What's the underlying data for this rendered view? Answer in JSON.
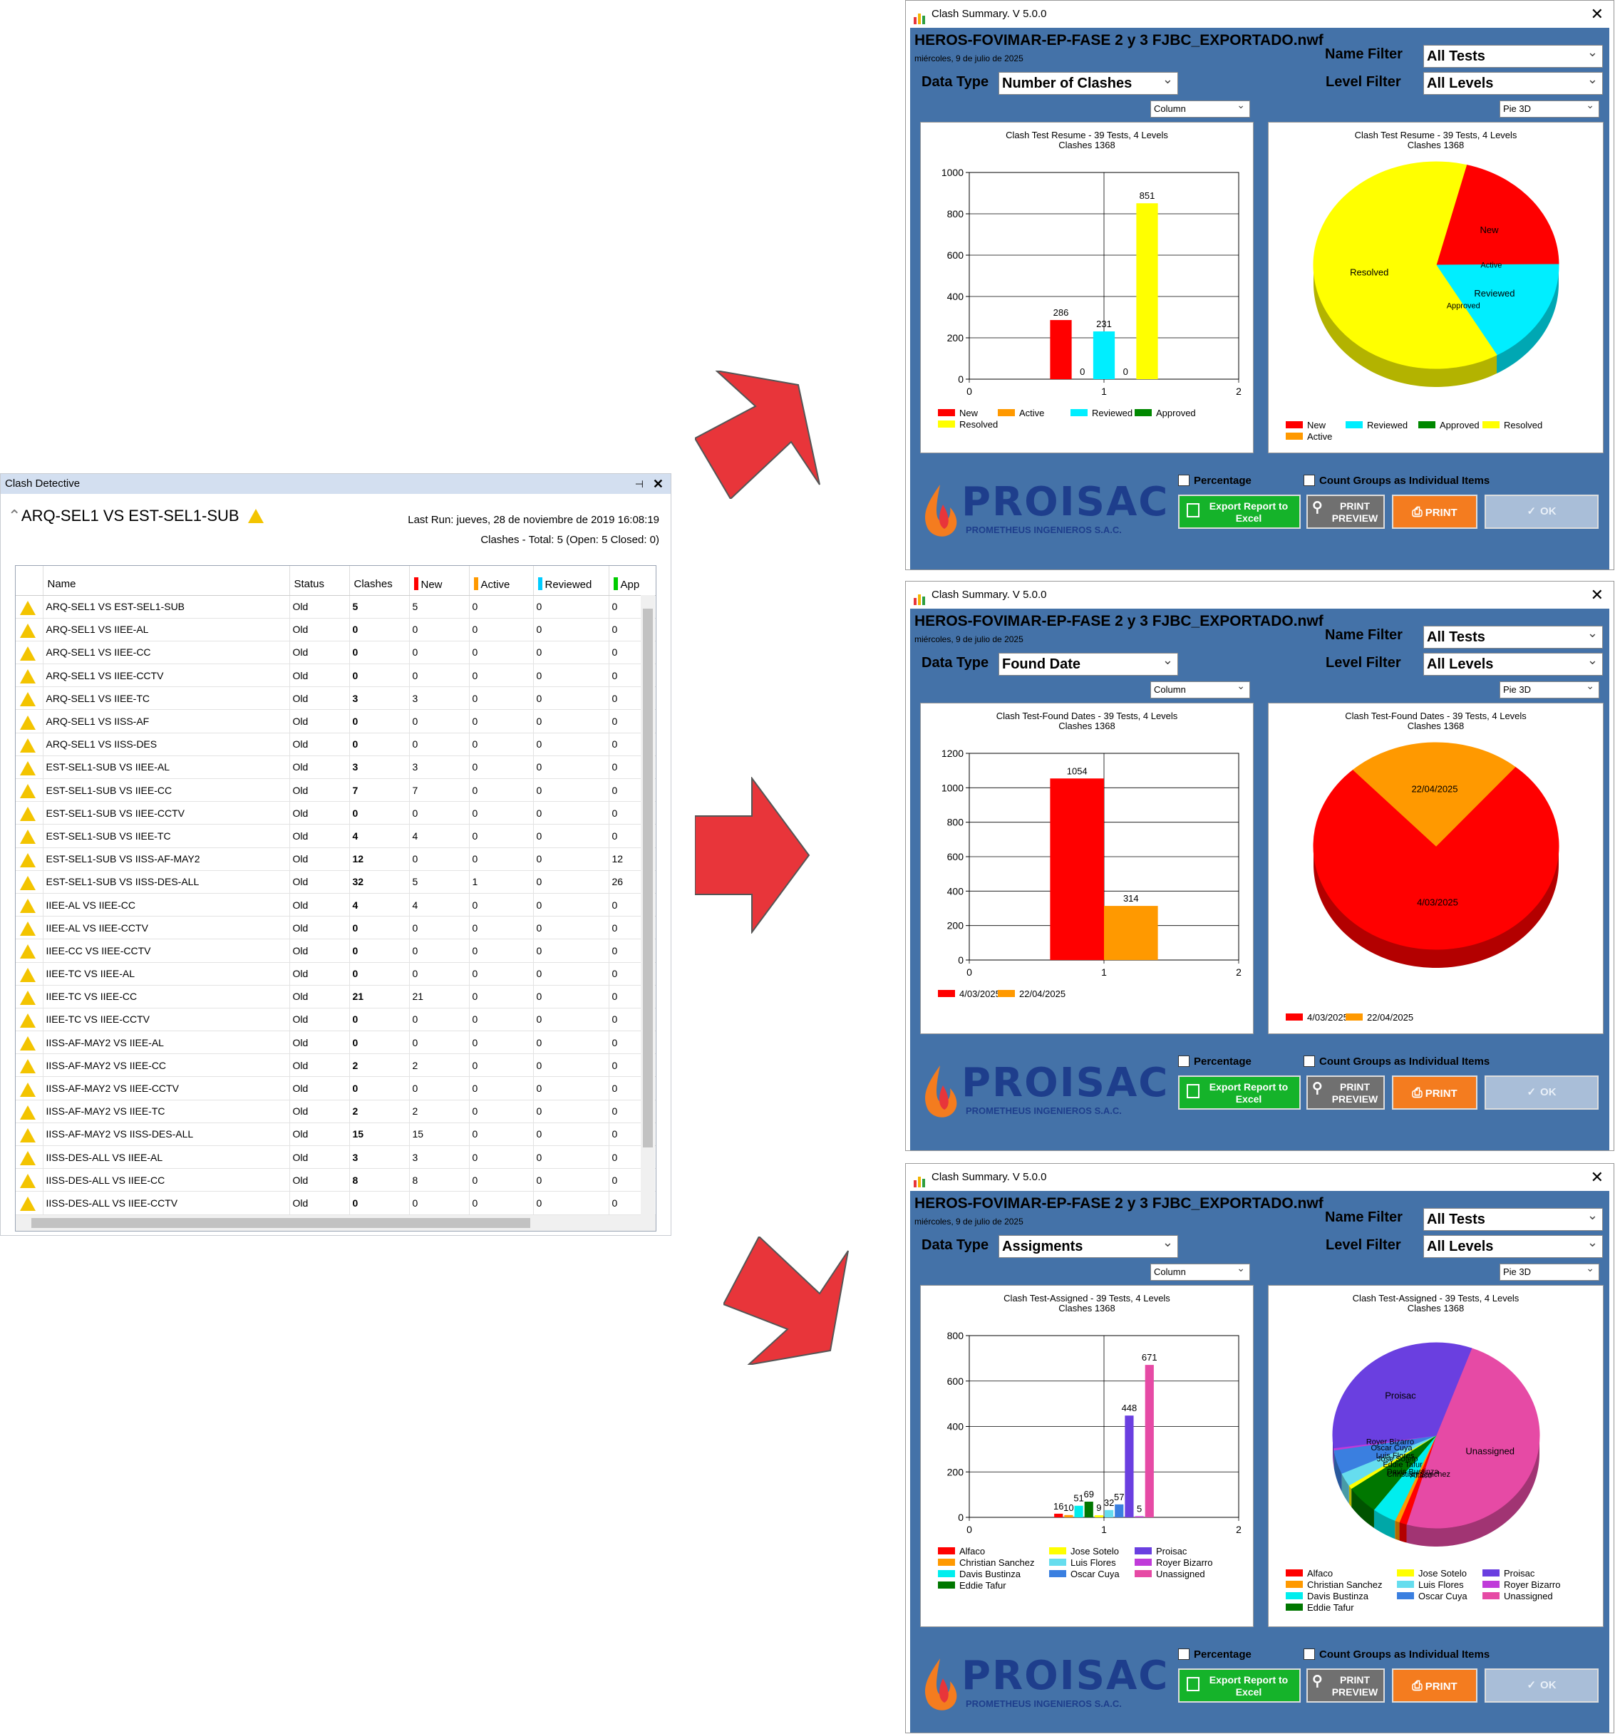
{
  "detective": {
    "window_title": "Clash Detective",
    "pin": "⊣",
    "close": "✕",
    "test_name": "ARQ-SEL1 VS EST-SEL1-SUB",
    "last_run": "Last Run:  jueves, 28 de noviembre de 2019 16:08:19",
    "summary": "Clashes - Total:  5  (Open:  5  Closed:  0)",
    "columns": [
      "Name",
      "Status",
      "Clashes",
      "New",
      "Active",
      "Reviewed",
      "App"
    ],
    "column_colors": {
      "New": "#ff0000",
      "Active": "#ff9900",
      "Reviewed": "#00ccff",
      "App": "#00cc00"
    },
    "rows": [
      [
        "ARQ-SEL1 VS EST-SEL1-SUB",
        "Old",
        "5",
        "5",
        "0",
        "0",
        "0"
      ],
      [
        "ARQ-SEL1 VS IIEE-AL",
        "Old",
        "0",
        "0",
        "0",
        "0",
        "0"
      ],
      [
        "ARQ-SEL1 VS IIEE-CC",
        "Old",
        "0",
        "0",
        "0",
        "0",
        "0"
      ],
      [
        "ARQ-SEL1 VS IIEE-CCTV",
        "Old",
        "0",
        "0",
        "0",
        "0",
        "0"
      ],
      [
        "ARQ-SEL1 VS IIEE-TC",
        "Old",
        "3",
        "3",
        "0",
        "0",
        "0"
      ],
      [
        "ARQ-SEL1 VS IISS-AF",
        "Old",
        "0",
        "0",
        "0",
        "0",
        "0"
      ],
      [
        "ARQ-SEL1 VS IISS-DES",
        "Old",
        "0",
        "0",
        "0",
        "0",
        "0"
      ],
      [
        "EST-SEL1-SUB VS IIEE-AL",
        "Old",
        "3",
        "3",
        "0",
        "0",
        "0"
      ],
      [
        "EST-SEL1-SUB VS IIEE-CC",
        "Old",
        "7",
        "7",
        "0",
        "0",
        "0"
      ],
      [
        "EST-SEL1-SUB VS IIEE-CCTV",
        "Old",
        "0",
        "0",
        "0",
        "0",
        "0"
      ],
      [
        "EST-SEL1-SUB VS IIEE-TC",
        "Old",
        "4",
        "4",
        "0",
        "0",
        "0"
      ],
      [
        "EST-SEL1-SUB VS IISS-AF-MAY2",
        "Old",
        "12",
        "0",
        "0",
        "0",
        "12"
      ],
      [
        "EST-SEL1-SUB VS IISS-DES-ALL",
        "Old",
        "32",
        "5",
        "1",
        "0",
        "26"
      ],
      [
        "IIEE-AL VS IIEE-CC",
        "Old",
        "4",
        "4",
        "0",
        "0",
        "0"
      ],
      [
        "IIEE-AL VS IIEE-CCTV",
        "Old",
        "0",
        "0",
        "0",
        "0",
        "0"
      ],
      [
        "IIEE-CC VS IIEE-CCTV",
        "Old",
        "0",
        "0",
        "0",
        "0",
        "0"
      ],
      [
        "IIEE-TC VS IIEE-AL",
        "Old",
        "0",
        "0",
        "0",
        "0",
        "0"
      ],
      [
        "IIEE-TC VS IIEE-CC",
        "Old",
        "21",
        "21",
        "0",
        "0",
        "0"
      ],
      [
        "IIEE-TC VS IIEE-CCTV",
        "Old",
        "0",
        "0",
        "0",
        "0",
        "0"
      ],
      [
        "IISS-AF-MAY2 VS IIEE-AL",
        "Old",
        "0",
        "0",
        "0",
        "0",
        "0"
      ],
      [
        "IISS-AF-MAY2 VS IIEE-CC",
        "Old",
        "2",
        "2",
        "0",
        "0",
        "0"
      ],
      [
        "IISS-AF-MAY2 VS IIEE-CCTV",
        "Old",
        "0",
        "0",
        "0",
        "0",
        "0"
      ],
      [
        "IISS-AF-MAY2 VS IIEE-TC",
        "Old",
        "2",
        "2",
        "0",
        "0",
        "0"
      ],
      [
        "IISS-AF-MAY2 VS IISS-DES-ALL",
        "Old",
        "15",
        "15",
        "0",
        "0",
        "0"
      ],
      [
        "IISS-DES-ALL VS IIEE-AL",
        "Old",
        "3",
        "3",
        "0",
        "0",
        "0"
      ],
      [
        "IISS-DES-ALL VS IIEE-CC",
        "Old",
        "8",
        "8",
        "0",
        "0",
        "0"
      ],
      [
        "IISS-DES-ALL VS IIEE-CCTV",
        "Old",
        "0",
        "0",
        "0",
        "0",
        "0"
      ]
    ]
  },
  "windows": [
    {
      "title": "Clash Summary. V 5.0.0",
      "file": "HEROS-FOVIMAR-EP-FASE 2 y 3 FJBC_EXPORTADO.nwf",
      "date": "miércoles, 9 de julio de 2025",
      "name_filter_label": "Name Filter",
      "name_filter": "All Tests",
      "level_filter_label": "Level Filter",
      "level_filter": "All Levels",
      "data_type_label": "Data Type",
      "data_type": "Number of Clashes",
      "bar_type": "Column",
      "pie_type": "Pie 3D",
      "chk_percentage": "Percentage",
      "chk_groups": "Count Groups as Individual Items",
      "btn_excel": "Export Report to Excel",
      "btn_preview": "PRINT PREVIEW",
      "btn_print": "PRINT",
      "btn_ok": "OK",
      "logo": "PROISAC",
      "logo_sub": "PROMETHEUS INGENIEROS S.A.C."
    },
    {
      "title": "Clash Summary. V 5.0.0",
      "file": "HEROS-FOVIMAR-EP-FASE 2 y 3 FJBC_EXPORTADO.nwf",
      "date": "miércoles, 9 de julio de 2025",
      "name_filter_label": "Name Filter",
      "name_filter": "All Tests",
      "level_filter_label": "Level Filter",
      "level_filter": "All Levels",
      "data_type_label": "Data Type",
      "data_type": "Found Date",
      "bar_type": "Column",
      "pie_type": "Pie 3D",
      "chk_percentage": "Percentage",
      "chk_groups": "Count Groups as Individual Items",
      "btn_excel": "Export Report to Excel",
      "btn_preview": "PRINT PREVIEW",
      "btn_print": "PRINT",
      "btn_ok": "OK",
      "logo": "PROISAC",
      "logo_sub": "PROMETHEUS INGENIEROS S.A.C."
    },
    {
      "title": "Clash Summary. V 5.0.0",
      "file": "HEROS-FOVIMAR-EP-FASE 2 y 3 FJBC_EXPORTADO.nwf",
      "date": "miércoles, 9 de julio de 2025",
      "name_filter_label": "Name Filter",
      "name_filter": "All Tests",
      "level_filter_label": "Level Filter",
      "level_filter": "All Levels",
      "data_type_label": "Data Type",
      "data_type": "Assigments",
      "bar_type": "Column",
      "pie_type": "Pie 3D",
      "chk_percentage": "Percentage",
      "chk_groups": "Count Groups as Individual Items",
      "btn_excel": "Export Report to Excel",
      "btn_preview": "PRINT PREVIEW",
      "btn_print": "PRINT",
      "btn_ok": "OK",
      "logo": "PROISAC",
      "logo_sub": "PROMETHEUS INGENIEROS S.A.C."
    }
  ],
  "colors": {
    "arrow": "#e8353a",
    "window_bg": "#4472a8",
    "accent_green": "#15b32a",
    "accent_orange": "#f47c1f"
  },
  "chart_data": [
    {
      "type": "bar",
      "title": "Clash Test Resume - 39 Tests, 4 Levels",
      "subtitle": "Clashes 1368",
      "x_ticks": [
        0,
        1,
        2
      ],
      "ylim": [
        0,
        1000
      ],
      "y_ticks": [
        0,
        200,
        400,
        600,
        800,
        1000
      ],
      "series": [
        {
          "name": "New",
          "value": 286,
          "color": "#ff0000"
        },
        {
          "name": "Active",
          "value": 0,
          "color": "#ff9900"
        },
        {
          "name": "Reviewed",
          "value": 231,
          "color": "#00eeff"
        },
        {
          "name": "Approved",
          "value": 0,
          "color": "#008800"
        },
        {
          "name": "Resolved",
          "value": 851,
          "color": "#ffff00"
        }
      ]
    },
    {
      "type": "pie",
      "title": "Clash Test Resume - 39 Tests, 4 Levels",
      "subtitle": "Clashes 1368",
      "slices": [
        {
          "name": "New",
          "value": 286,
          "color": "#ff0000"
        },
        {
          "name": "Active",
          "value": 0,
          "color": "#ff9900"
        },
        {
          "name": "Reviewed",
          "value": 231,
          "color": "#00eeff"
        },
        {
          "name": "Approved",
          "value": 0,
          "color": "#008800"
        },
        {
          "name": "Resolved",
          "value": 851,
          "color": "#ffff00"
        }
      ],
      "legend": [
        "New",
        "Reviewed",
        "Approved",
        "Resolved",
        "Active"
      ]
    },
    {
      "type": "bar",
      "title": "Clash Test-Found Dates - 39 Tests, 4 Levels",
      "subtitle": "Clashes 1368",
      "x_ticks": [
        0,
        1,
        2
      ],
      "ylim": [
        0,
        1200
      ],
      "y_ticks": [
        0,
        200,
        400,
        600,
        800,
        1000,
        1200
      ],
      "series": [
        {
          "name": "4/03/2025",
          "value": 1054,
          "color": "#ff0000"
        },
        {
          "name": "22/04/2025",
          "value": 314,
          "color": "#ff9900"
        }
      ]
    },
    {
      "type": "pie",
      "title": "Clash Test-Found Dates - 39 Tests, 4 Levels",
      "subtitle": "Clashes 1368",
      "slices": [
        {
          "name": "4/03/2025",
          "value": 1054,
          "color": "#ff0000"
        },
        {
          "name": "22/04/2025",
          "value": 314,
          "color": "#ff9900"
        }
      ],
      "legend": [
        "4/03/2025",
        "22/04/2025"
      ]
    },
    {
      "type": "bar",
      "title": "Clash Test-Assigned - 39 Tests, 4 Levels",
      "subtitle": "Clashes 1368",
      "x_ticks": [
        0,
        1,
        2
      ],
      "ylim": [
        0,
        800
      ],
      "y_ticks": [
        0,
        200,
        400,
        600,
        800
      ],
      "series": [
        {
          "name": "Alfaco",
          "value": 16,
          "color": "#ff0000"
        },
        {
          "name": "Christian Sanchez",
          "value": 10,
          "color": "#ff9900"
        },
        {
          "name": "Davis Bustinza",
          "value": 51,
          "color": "#00eeee"
        },
        {
          "name": "Eddie Tafur",
          "value": 69,
          "color": "#007700"
        },
        {
          "name": "Jose Sotelo",
          "value": 9,
          "color": "#ffff00"
        },
        {
          "name": "Luis Flores",
          "value": 32,
          "color": "#66ddee"
        },
        {
          "name": "Oscar Cuya",
          "value": 57,
          "color": "#3a7fe0"
        },
        {
          "name": "Proisac",
          "value": 448,
          "color": "#6a3fe0"
        },
        {
          "name": "Royer Bizarro",
          "value": 5,
          "color": "#c03bd9"
        },
        {
          "name": "Unassigned",
          "value": 671,
          "color": "#e64aa5"
        }
      ]
    },
    {
      "type": "pie",
      "title": "Clash Test-Assigned - 39 Tests, 4 Levels",
      "subtitle": "Clashes 1368",
      "slices": [
        {
          "name": "Unassigned",
          "value": 671,
          "color": "#e64aa5"
        },
        {
          "name": "Alfaco",
          "value": 16,
          "color": "#ff0000"
        },
        {
          "name": "Christian Sanchez",
          "value": 10,
          "color": "#ff9900"
        },
        {
          "name": "Davis Bustinza",
          "value": 51,
          "color": "#00eeee"
        },
        {
          "name": "Eddie Tafur",
          "value": 69,
          "color": "#007700"
        },
        {
          "name": "Jose Sotelo",
          "value": 9,
          "color": "#ffff00"
        },
        {
          "name": "Luis Flores",
          "value": 32,
          "color": "#66ddee"
        },
        {
          "name": "Oscar Cuya",
          "value": 57,
          "color": "#3a7fe0"
        },
        {
          "name": "Royer Bizarro",
          "value": 5,
          "color": "#c03bd9"
        },
        {
          "name": "Proisac",
          "value": 448,
          "color": "#6a3fe0"
        }
      ],
      "legend": [
        "Alfaco",
        "Christian Sanchez",
        "Davis Bustinza",
        "Eddie Tafur",
        "Jose Sotelo",
        "Luis Flores",
        "Oscar Cuya",
        "Proisac",
        "Royer Bizarro",
        "Unassigned"
      ]
    }
  ]
}
